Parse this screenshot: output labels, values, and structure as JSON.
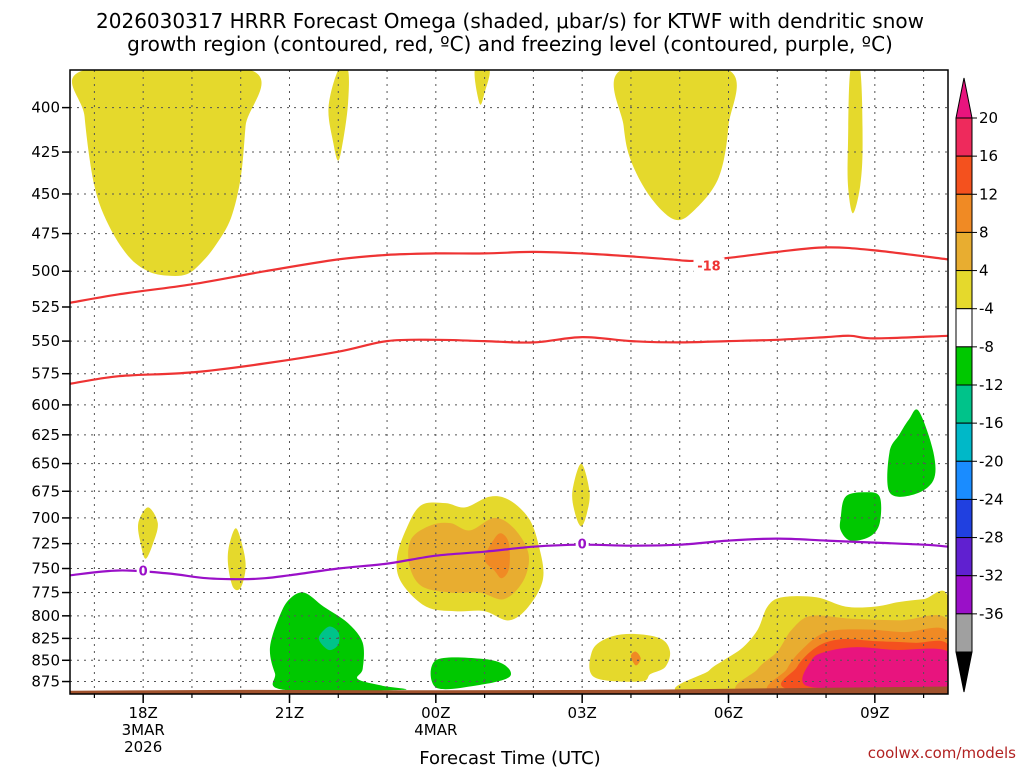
{
  "chart_data": {
    "type": "contour-timeheight",
    "title_line1": "2026030317 HRRR Forecast Omega (shaded, μbar/s) for KTWF with dendritic snow",
    "title_line2": "growth region (contoured, red, ºC) and freezing level (contoured, purple, ºC)",
    "xlabel": "Forecast Time (UTC)",
    "credit": "coolwx.com/models",
    "x_range": [
      16.5,
      34.5
    ],
    "y_range": [
      380,
      890
    ],
    "y_ticks": [
      400,
      425,
      450,
      475,
      500,
      525,
      550,
      575,
      600,
      625,
      650,
      675,
      700,
      725,
      750,
      775,
      800,
      825,
      850,
      875
    ],
    "x_ticks": [
      {
        "hour": 18,
        "lines": [
          "18Z",
          "3MAR",
          "2026"
        ]
      },
      {
        "hour": 21,
        "lines": [
          "21Z"
        ]
      },
      {
        "hour": 24,
        "lines": [
          "00Z",
          "4MAR"
        ]
      },
      {
        "hour": 27,
        "lines": [
          "03Z"
        ]
      },
      {
        "hour": 30,
        "lines": [
          "06Z"
        ]
      },
      {
        "hour": 33,
        "lines": [
          "09Z"
        ]
      }
    ],
    "colorbar": {
      "levels": [
        20,
        16,
        12,
        8,
        4,
        -4,
        -8,
        -12,
        -16,
        -20,
        -24,
        -28,
        -32,
        -36
      ],
      "colors": [
        "#ee2a5c",
        "#f4511e",
        "#f08a24",
        "#e8ad30",
        "#e5d92c",
        "#ffffff",
        "#00c800",
        "#00c38a",
        "#00b8c8",
        "#1a8cff",
        "#2040e0",
        "#6020d0",
        "#9a10c8",
        "#a0a0a0"
      ],
      "top_color": "#e8147e",
      "bottom_color": "#000000"
    },
    "shading": [
      {
        "color": "#e5d92c",
        "points": [
          [
            16.8,
            380
          ],
          [
            16.8,
            405
          ],
          [
            17,
            445
          ],
          [
            17.3,
            470
          ],
          [
            17.7,
            490
          ],
          [
            18.1,
            500
          ],
          [
            18.5,
            503
          ],
          [
            18.9,
            502
          ],
          [
            19.2,
            494
          ],
          [
            19.5,
            482
          ],
          [
            19.8,
            465
          ],
          [
            20.0,
            440
          ],
          [
            20.1,
            410
          ],
          [
            20.2,
            380
          ]
        ]
      },
      {
        "color": "#e5d92c",
        "points": [
          [
            18.6,
            380
          ],
          [
            18.9,
            400
          ],
          [
            19.1,
            380
          ]
        ]
      },
      {
        "color": "#e5d92c",
        "points": [
          [
            22.0,
            380
          ],
          [
            22.2,
            380
          ],
          [
            22.2,
            398
          ],
          [
            22.1,
            418
          ],
          [
            22.0,
            430
          ],
          [
            21.9,
            420
          ],
          [
            21.8,
            400
          ]
        ]
      },
      {
        "color": "#e5d92c",
        "points": [
          [
            24.8,
            380
          ],
          [
            25.1,
            380
          ],
          [
            25.0,
            392
          ],
          [
            24.9,
            398
          ]
        ]
      },
      {
        "color": "#e5d92c",
        "points": [
          [
            27.8,
            380
          ],
          [
            30.0,
            380
          ],
          [
            30.0,
            410
          ],
          [
            29.8,
            440
          ],
          [
            29.3,
            460
          ],
          [
            28.9,
            466
          ],
          [
            28.4,
            452
          ],
          [
            28.0,
            430
          ],
          [
            27.85,
            410
          ]
        ]
      },
      {
        "color": "#e5d92c",
        "points": [
          [
            32.5,
            380
          ],
          [
            32.7,
            380
          ],
          [
            32.75,
            420
          ],
          [
            32.7,
            445
          ],
          [
            32.55,
            462
          ],
          [
            32.45,
            445
          ],
          [
            32.45,
            420
          ]
        ]
      },
      {
        "color": "#e5d92c",
        "points": [
          [
            17.9,
            705
          ],
          [
            18.1,
            690
          ],
          [
            18.3,
            705
          ],
          [
            18.2,
            725
          ],
          [
            18.05,
            740
          ],
          [
            17.95,
            725
          ]
        ]
      },
      {
        "color": "#e5d92c",
        "points": [
          [
            19.75,
            730
          ],
          [
            19.9,
            710
          ],
          [
            20.05,
            730
          ],
          [
            20.1,
            750
          ],
          [
            20.0,
            770
          ],
          [
            19.85,
            770
          ],
          [
            19.75,
            750
          ]
        ]
      },
      {
        "color": "#e5d92c",
        "points": [
          [
            26.8,
            675
          ],
          [
            26.98,
            650
          ],
          [
            27.15,
            675
          ],
          [
            27.1,
            695
          ],
          [
            26.98,
            708
          ],
          [
            26.85,
            695
          ]
        ]
      },
      {
        "color": "#e5d92c",
        "points": [
          [
            23.4,
            710
          ],
          [
            23.2,
            740
          ],
          [
            23.3,
            765
          ],
          [
            23.8,
            790
          ],
          [
            24.4,
            795
          ],
          [
            25.0,
            795
          ],
          [
            25.5,
            805
          ],
          [
            25.9,
            790
          ],
          [
            26.2,
            760
          ],
          [
            26.1,
            725
          ],
          [
            25.9,
            700
          ],
          [
            25.5,
            683
          ],
          [
            25.1,
            680
          ],
          [
            24.6,
            690
          ],
          [
            24.2,
            686
          ],
          [
            23.7,
            688
          ]
        ]
      },
      {
        "color": "#e8ad30",
        "points": [
          [
            23.5,
            720
          ],
          [
            23.45,
            745
          ],
          [
            23.7,
            768
          ],
          [
            24.3,
            775
          ],
          [
            24.9,
            775
          ],
          [
            25.4,
            782
          ],
          [
            25.8,
            762
          ],
          [
            25.9,
            735
          ],
          [
            25.6,
            710
          ],
          [
            25.2,
            700
          ],
          [
            24.7,
            712
          ],
          [
            24.3,
            705
          ],
          [
            23.9,
            707
          ]
        ]
      },
      {
        "color": "#f08a24",
        "points": [
          [
            25.0,
            740
          ],
          [
            25.2,
            720
          ],
          [
            25.35,
            715
          ],
          [
            25.5,
            725
          ],
          [
            25.5,
            750
          ],
          [
            25.35,
            760
          ],
          [
            25.2,
            752
          ]
        ]
      },
      {
        "color": "#e5d92c",
        "points": [
          [
            27.25,
            870
          ],
          [
            27.2,
            840
          ],
          [
            27.5,
            825
          ],
          [
            28.0,
            820
          ],
          [
            28.6,
            825
          ],
          [
            28.8,
            840
          ],
          [
            28.7,
            858
          ],
          [
            28.4,
            866
          ],
          [
            28.2,
            875
          ]
        ]
      },
      {
        "color": "#f08a24",
        "points": [
          [
            28.0,
            845
          ],
          [
            28.1,
            840
          ],
          [
            28.2,
            848
          ],
          [
            28.1,
            856
          ]
        ]
      },
      {
        "color": "#e5d92c",
        "points": [
          [
            29.2,
            890
          ],
          [
            29.6,
            862
          ],
          [
            29.9,
            850
          ],
          [
            30.3,
            835
          ],
          [
            30.6,
            815
          ],
          [
            30.8,
            790
          ],
          [
            31.1,
            780
          ],
          [
            31.8,
            780
          ],
          [
            32.4,
            790
          ],
          [
            33.0,
            790
          ],
          [
            33.5,
            785
          ],
          [
            34.0,
            782
          ],
          [
            34.5,
            780
          ],
          [
            34.5,
            890
          ]
        ]
      },
      {
        "color": "#e8ad30",
        "points": [
          [
            30.4,
            890
          ],
          [
            30.6,
            860
          ],
          [
            31.0,
            840
          ],
          [
            31.3,
            815
          ],
          [
            31.7,
            800
          ],
          [
            32.5,
            803
          ],
          [
            33.5,
            805
          ],
          [
            34.5,
            805
          ],
          [
            34.5,
            890
          ]
        ]
      },
      {
        "color": "#f08a24",
        "points": [
          [
            31.0,
            890
          ],
          [
            31.2,
            860
          ],
          [
            31.5,
            838
          ],
          [
            32.0,
            818
          ],
          [
            32.8,
            815
          ],
          [
            33.6,
            818
          ],
          [
            34.5,
            818
          ],
          [
            34.5,
            890
          ]
        ]
      },
      {
        "color": "#f4511e",
        "points": [
          [
            31.3,
            885
          ],
          [
            31.4,
            858
          ],
          [
            31.8,
            835
          ],
          [
            32.3,
            826
          ],
          [
            33.0,
            828
          ],
          [
            33.8,
            830
          ],
          [
            34.5,
            832
          ],
          [
            34.5,
            885
          ]
        ]
      },
      {
        "color": "#e8147e",
        "points": [
          [
            31.6,
            880
          ],
          [
            31.7,
            850
          ],
          [
            32.0,
            840
          ],
          [
            32.6,
            835
          ],
          [
            33.4,
            838
          ],
          [
            34.5,
            840
          ],
          [
            34.5,
            880
          ],
          [
            33.0,
            882
          ]
        ]
      },
      {
        "color": "#00c800",
        "points": [
          [
            20.6,
            835
          ],
          [
            20.8,
            800
          ],
          [
            21.0,
            782
          ],
          [
            21.3,
            775
          ],
          [
            21.7,
            790
          ],
          [
            22.2,
            808
          ],
          [
            22.5,
            830
          ],
          [
            22.5,
            860
          ],
          [
            22.4,
            872
          ],
          [
            22.9,
            880
          ],
          [
            23.3,
            885
          ],
          [
            20.9,
            885
          ],
          [
            20.7,
            865
          ]
        ]
      },
      {
        "color": "#00c38a",
        "points": [
          [
            21.6,
            825
          ],
          [
            21.8,
            812
          ],
          [
            22.0,
            818
          ],
          [
            22.0,
            832
          ],
          [
            21.8,
            838
          ]
        ]
      },
      {
        "color": "#00c800",
        "points": [
          [
            24.0,
            850
          ],
          [
            24.9,
            848
          ],
          [
            25.4,
            855
          ],
          [
            25.5,
            870
          ],
          [
            24.8,
            880
          ],
          [
            24.0,
            882
          ]
        ]
      },
      {
        "color": "#00c800",
        "points": [
          [
            32.3,
            700
          ],
          [
            32.4,
            680
          ],
          [
            32.8,
            676
          ],
          [
            33.1,
            680
          ],
          [
            33.1,
            705
          ],
          [
            32.9,
            718
          ],
          [
            32.5,
            722
          ],
          [
            32.3,
            712
          ]
        ]
      },
      {
        "color": "#00c800",
        "points": [
          [
            33.3,
            640
          ],
          [
            33.5,
            625
          ],
          [
            33.7,
            612
          ],
          [
            33.9,
            605
          ],
          [
            34.2,
            640
          ],
          [
            34.2,
            665
          ],
          [
            33.8,
            678
          ],
          [
            33.3,
            676
          ]
        ]
      }
    ],
    "contours": [
      {
        "name": "dendritic-top",
        "label": "-18",
        "label_at": [
          29.6,
          496
        ],
        "color": "#ee3333",
        "points": [
          [
            16.5,
            522
          ],
          [
            17.5,
            516
          ],
          [
            19,
            509
          ],
          [
            20.5,
            500
          ],
          [
            22,
            492
          ],
          [
            23,
            489
          ],
          [
            24,
            488
          ],
          [
            25,
            488
          ],
          [
            26,
            487
          ],
          [
            27,
            488
          ],
          [
            28,
            490
          ],
          [
            28.8,
            492
          ],
          [
            29.3,
            493
          ],
          [
            30,
            491
          ],
          [
            31,
            487
          ],
          [
            32,
            484
          ],
          [
            33,
            486
          ],
          [
            34.5,
            492
          ]
        ]
      },
      {
        "name": "dendritic-bottom",
        "label": "",
        "color": "#ee3333",
        "points": [
          [
            16.5,
            583
          ],
          [
            17.5,
            577
          ],
          [
            19,
            574
          ],
          [
            20.5,
            567
          ],
          [
            22,
            558
          ],
          [
            23,
            550
          ],
          [
            24,
            549
          ],
          [
            25,
            550
          ],
          [
            26,
            551
          ],
          [
            27,
            547
          ],
          [
            28,
            550
          ],
          [
            29,
            551
          ],
          [
            30,
            550
          ],
          [
            31,
            549
          ],
          [
            32,
            547
          ],
          [
            32.5,
            546
          ],
          [
            33,
            548
          ],
          [
            34.5,
            546
          ]
        ]
      },
      {
        "name": "freezing-level",
        "label": "0",
        "label_at": [
          18,
          752
        ],
        "label2": "0",
        "label2_at": [
          27.0,
          725
        ],
        "color": "#9a10c8",
        "points": [
          [
            16.5,
            757
          ],
          [
            17.5,
            752
          ],
          [
            18.5,
            755
          ],
          [
            19.3,
            760
          ],
          [
            20,
            761
          ],
          [
            20.5,
            760
          ],
          [
            21.0,
            757
          ],
          [
            22,
            750
          ],
          [
            23,
            745
          ],
          [
            24,
            737
          ],
          [
            25,
            733
          ],
          [
            26,
            728
          ],
          [
            27,
            726
          ],
          [
            28,
            727
          ],
          [
            29,
            726
          ],
          [
            30,
            722
          ],
          [
            31,
            720
          ],
          [
            32,
            722
          ],
          [
            33,
            724
          ],
          [
            34,
            726
          ],
          [
            34.5,
            728
          ]
        ]
      }
    ],
    "terrain": {
      "color": "#a0522d",
      "points": [
        [
          16.5,
          886
        ],
        [
          20,
          885
        ],
        [
          24,
          885.5
        ],
        [
          28,
          885
        ],
        [
          31,
          883
        ],
        [
          34.5,
          881
        ]
      ]
    }
  }
}
